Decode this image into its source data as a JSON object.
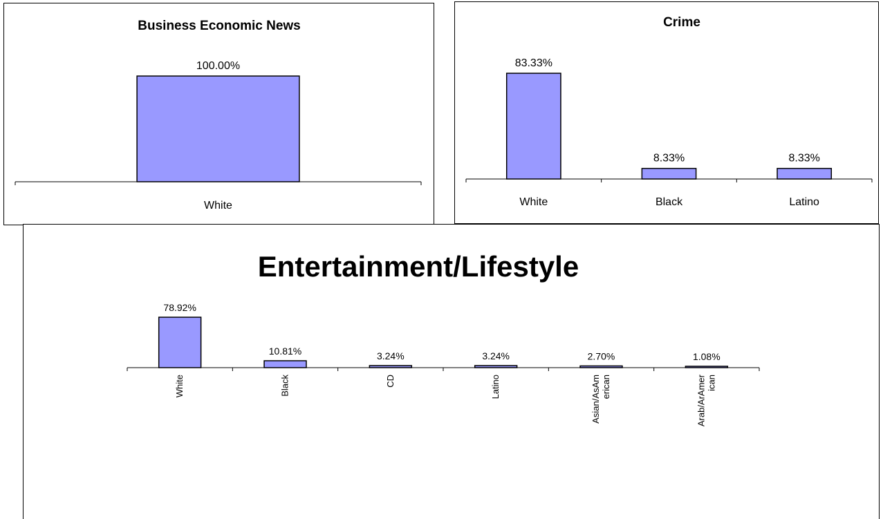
{
  "chart_data": [
    {
      "type": "bar",
      "title": "Business Economic News",
      "categories": [
        "White"
      ],
      "values": [
        100.0
      ],
      "data_labels": [
        "100.00%"
      ],
      "ylim": [
        0,
        100
      ],
      "grid": false,
      "bar_color": "#9999ff"
    },
    {
      "type": "bar",
      "title": "Crime",
      "categories": [
        "White",
        "Black",
        "Latino"
      ],
      "values": [
        83.33,
        8.33,
        8.33
      ],
      "data_labels": [
        "83.33%",
        "8.33%",
        "8.33%"
      ],
      "ylim": [
        0,
        83.33
      ],
      "grid": false,
      "bar_color": "#9999ff"
    },
    {
      "type": "bar",
      "title": "Entertainment/Lifestyle",
      "categories": [
        "White",
        "Black",
        "CD",
        "Latino",
        "Asian/AsAm\nerican",
        "Arab/ArAmer\nican"
      ],
      "values": [
        78.92,
        10.81,
        3.24,
        3.24,
        2.7,
        1.08
      ],
      "data_labels": [
        "78.92%",
        "10.81%",
        "3.24%",
        "3.24%",
        "2.70%",
        "1.08%"
      ],
      "ylim": [
        0,
        78.92
      ],
      "grid": false,
      "bar_color": "#9999ff",
      "tick_label_rotation": "vertical"
    }
  ]
}
